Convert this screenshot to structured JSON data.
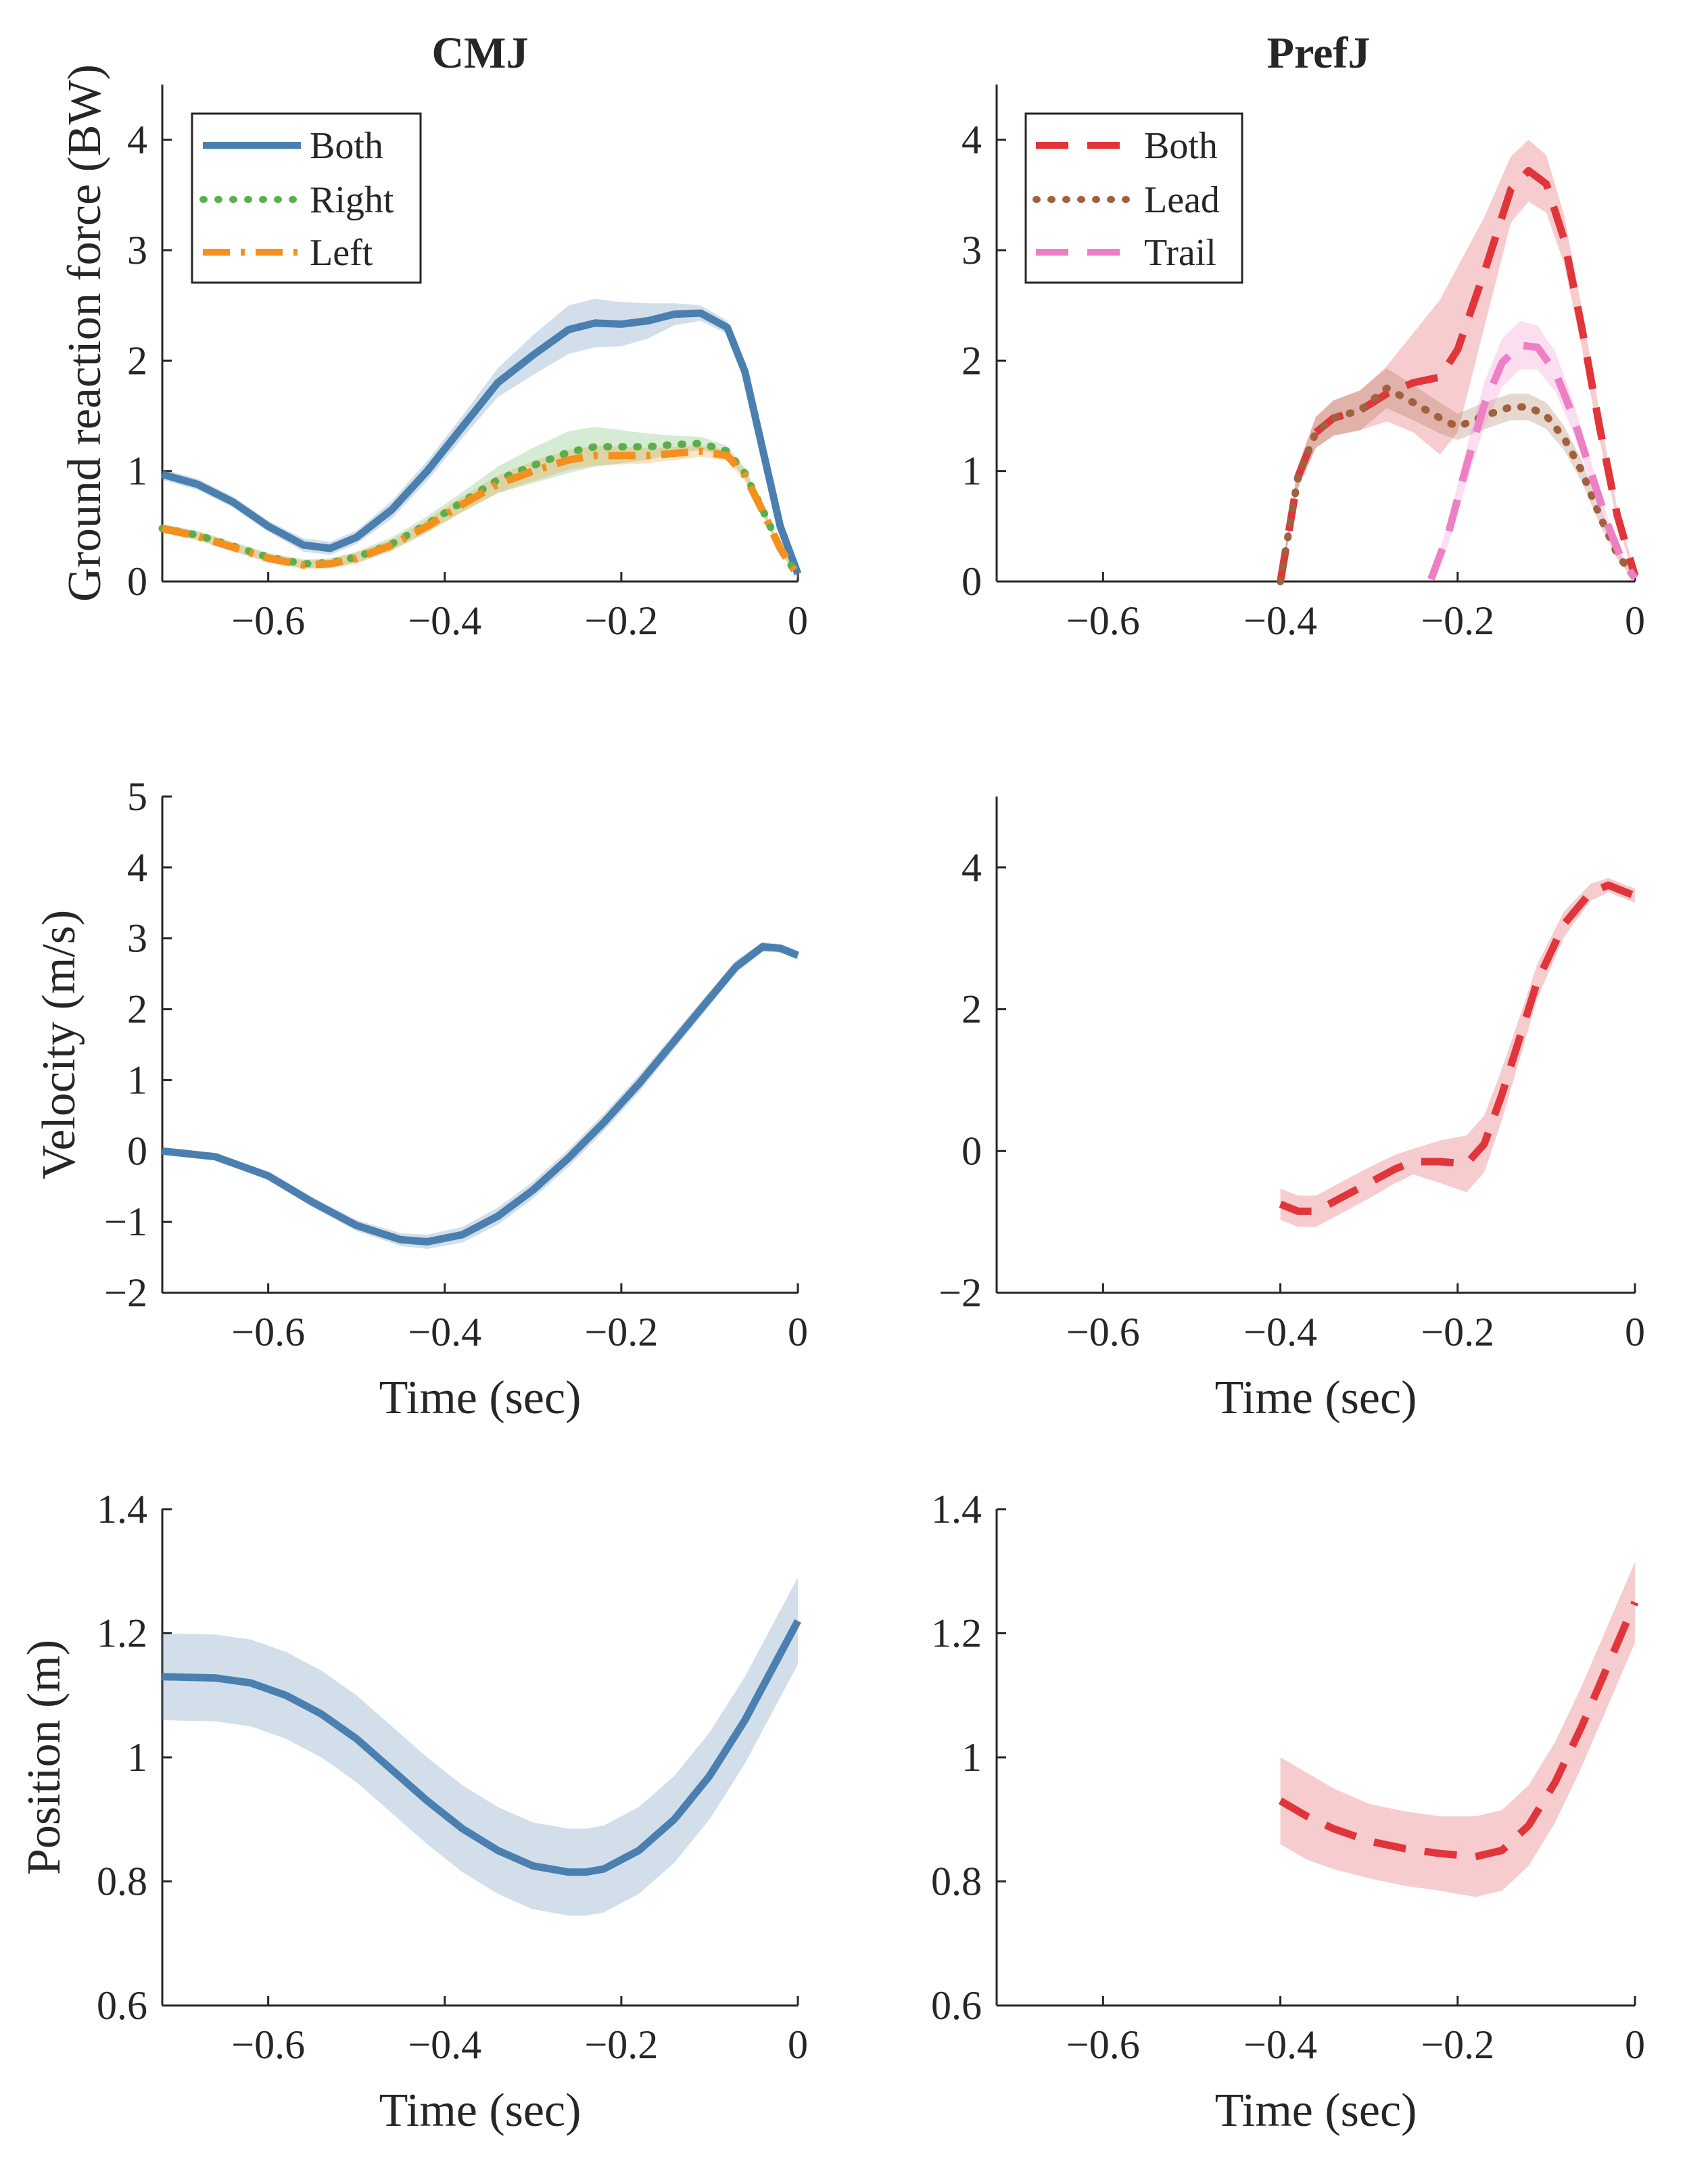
{
  "figure": {
    "columns": [
      "CMJ",
      "PrefJ"
    ]
  },
  "colors": {
    "cmj_both": "#4a7fb0",
    "cmj_right": "#5aae4e",
    "cmj_left": "#f3901e",
    "pref_both": "#e0353b",
    "pref_lead": "#a0623e",
    "pref_trail": "#ee7fc4"
  },
  "chart_data": [
    {
      "id": "cmj-grf",
      "type": "line",
      "title": "CMJ",
      "xlabel": "",
      "ylabel": "Ground reaction force (BW)",
      "xlim": [
        -0.72,
        0
      ],
      "ylim": [
        0,
        4.5
      ],
      "xticks": [
        -0.6,
        -0.4,
        -0.2,
        0
      ],
      "xtick_labels": [
        "−0.6",
        "−0.4",
        "−0.2",
        "0"
      ],
      "yticks": [
        0,
        1,
        2,
        3,
        4
      ],
      "ytick_labels": [
        "0",
        "1",
        "2",
        "3",
        "4"
      ],
      "legend": {
        "position": "top-left",
        "entries": [
          "Both",
          "Right",
          "Left"
        ]
      },
      "series": [
        {
          "name": "Both",
          "style": "solid",
          "color_key": "cmj_both",
          "x": [
            -0.72,
            -0.68,
            -0.64,
            -0.6,
            -0.56,
            -0.53,
            -0.5,
            -0.46,
            -0.42,
            -0.38,
            -0.34,
            -0.3,
            -0.26,
            -0.23,
            -0.2,
            -0.17,
            -0.14,
            -0.11,
            -0.08,
            -0.06,
            -0.04,
            -0.02,
            0.0
          ],
          "y": [
            0.97,
            0.88,
            0.72,
            0.5,
            0.33,
            0.3,
            0.4,
            0.65,
            1.0,
            1.4,
            1.8,
            2.05,
            2.28,
            2.34,
            2.33,
            2.36,
            2.42,
            2.43,
            2.3,
            1.9,
            1.2,
            0.5,
            0.07
          ],
          "band": [
            0.05,
            0.05,
            0.05,
            0.05,
            0.06,
            0.06,
            0.06,
            0.08,
            0.09,
            0.1,
            0.13,
            0.18,
            0.22,
            0.22,
            0.2,
            0.16,
            0.1,
            0.07,
            0.06,
            0.06,
            0.05,
            0.04,
            0.03
          ]
        },
        {
          "name": "Right",
          "style": "dotted",
          "color_key": "cmj_right",
          "x": [
            -0.72,
            -0.68,
            -0.64,
            -0.6,
            -0.56,
            -0.53,
            -0.5,
            -0.46,
            -0.42,
            -0.38,
            -0.34,
            -0.3,
            -0.26,
            -0.23,
            -0.2,
            -0.17,
            -0.14,
            -0.11,
            -0.08,
            -0.06,
            -0.04,
            -0.02,
            0.0
          ],
          "y": [
            0.48,
            0.42,
            0.32,
            0.22,
            0.16,
            0.17,
            0.22,
            0.34,
            0.52,
            0.72,
            0.92,
            1.05,
            1.17,
            1.22,
            1.22,
            1.22,
            1.24,
            1.25,
            1.18,
            0.98,
            0.65,
            0.3,
            0.05
          ],
          "band": [
            0.04,
            0.04,
            0.04,
            0.04,
            0.04,
            0.04,
            0.05,
            0.06,
            0.07,
            0.09,
            0.12,
            0.16,
            0.19,
            0.18,
            0.15,
            0.12,
            0.08,
            0.06,
            0.05,
            0.05,
            0.04,
            0.03,
            0.02
          ]
        },
        {
          "name": "Left",
          "style": "dashdot",
          "color_key": "cmj_left",
          "x": [
            -0.72,
            -0.68,
            -0.64,
            -0.6,
            -0.56,
            -0.53,
            -0.5,
            -0.46,
            -0.42,
            -0.38,
            -0.34,
            -0.3,
            -0.26,
            -0.23,
            -0.2,
            -0.17,
            -0.14,
            -0.11,
            -0.08,
            -0.06,
            -0.04,
            -0.02,
            0.0
          ],
          "y": [
            0.48,
            0.41,
            0.31,
            0.21,
            0.15,
            0.16,
            0.21,
            0.33,
            0.5,
            0.7,
            0.88,
            1.0,
            1.1,
            1.14,
            1.14,
            1.14,
            1.16,
            1.18,
            1.14,
            0.96,
            0.64,
            0.3,
            0.05
          ],
          "band": [
            0.04,
            0.04,
            0.04,
            0.04,
            0.04,
            0.04,
            0.05,
            0.05,
            0.06,
            0.07,
            0.08,
            0.09,
            0.09,
            0.09,
            0.08,
            0.07,
            0.06,
            0.05,
            0.05,
            0.05,
            0.04,
            0.03,
            0.02
          ]
        }
      ]
    },
    {
      "id": "pref-grf",
      "type": "line",
      "title": "PrefJ",
      "xlabel": "",
      "ylabel": "",
      "xlim": [
        -0.72,
        0
      ],
      "ylim": [
        0,
        4.5
      ],
      "xticks": [
        -0.6,
        -0.4,
        -0.2,
        0
      ],
      "xtick_labels": [
        "−0.6",
        "−0.4",
        "−0.2",
        "0"
      ],
      "yticks": [
        0,
        1,
        2,
        3,
        4
      ],
      "ytick_labels": [
        "0",
        "1",
        "2",
        "3",
        "4"
      ],
      "legend": {
        "position": "top-left",
        "entries": [
          "Both",
          "Lead",
          "Trail"
        ]
      },
      "series": [
        {
          "name": "Both",
          "style": "dashed",
          "color_key": "pref_both",
          "x": [
            -0.4,
            -0.38,
            -0.36,
            -0.34,
            -0.31,
            -0.28,
            -0.25,
            -0.22,
            -0.2,
            -0.17,
            -0.14,
            -0.12,
            -0.1,
            -0.08,
            -0.06,
            -0.04,
            -0.02,
            0.0
          ],
          "y": [
            0.0,
            0.95,
            1.35,
            1.48,
            1.55,
            1.7,
            1.8,
            1.85,
            2.1,
            2.8,
            3.55,
            3.72,
            3.6,
            3.1,
            2.3,
            1.4,
            0.6,
            0.05
          ],
          "band": [
            0.03,
            0.1,
            0.14,
            0.16,
            0.18,
            0.25,
            0.45,
            0.7,
            0.75,
            0.5,
            0.3,
            0.28,
            0.26,
            0.22,
            0.18,
            0.12,
            0.06,
            0.03
          ]
        },
        {
          "name": "Lead",
          "style": "dotted",
          "color_key": "pref_lead",
          "x": [
            -0.4,
            -0.38,
            -0.36,
            -0.34,
            -0.31,
            -0.28,
            -0.25,
            -0.22,
            -0.2,
            -0.17,
            -0.14,
            -0.12,
            -0.1,
            -0.08,
            -0.06,
            -0.04,
            -0.02,
            0.0
          ],
          "y": [
            0.0,
            0.95,
            1.35,
            1.48,
            1.55,
            1.75,
            1.62,
            1.48,
            1.4,
            1.5,
            1.58,
            1.58,
            1.5,
            1.3,
            1.0,
            0.6,
            0.25,
            0.03
          ],
          "band": [
            0.03,
            0.1,
            0.14,
            0.16,
            0.18,
            0.18,
            0.16,
            0.14,
            0.12,
            0.12,
            0.12,
            0.12,
            0.12,
            0.11,
            0.1,
            0.08,
            0.05,
            0.02
          ]
        },
        {
          "name": "Trail",
          "style": "dashed",
          "color_key": "pref_trail",
          "x": [
            -0.23,
            -0.21,
            -0.19,
            -0.17,
            -0.15,
            -0.13,
            -0.11,
            -0.09,
            -0.07,
            -0.05,
            -0.03,
            -0.015,
            0.0
          ],
          "y": [
            0.02,
            0.45,
            1.05,
            1.6,
            1.98,
            2.14,
            2.12,
            1.9,
            1.5,
            1.0,
            0.5,
            0.2,
            0.03
          ],
          "band": [
            0.02,
            0.1,
            0.16,
            0.2,
            0.22,
            0.22,
            0.2,
            0.18,
            0.14,
            0.1,
            0.06,
            0.04,
            0.02
          ]
        }
      ]
    },
    {
      "id": "cmj-vel",
      "type": "line",
      "title": "",
      "xlabel": "Time (sec)",
      "ylabel": "Velocity (m/s)",
      "xlim": [
        -0.72,
        0
      ],
      "ylim": [
        -2,
        5
      ],
      "xticks": [
        -0.6,
        -0.4,
        -0.2,
        0
      ],
      "xtick_labels": [
        "−0.6",
        "−0.4",
        "−0.2",
        "0"
      ],
      "yticks": [
        -2,
        -1,
        0,
        1,
        2,
        3,
        4,
        5
      ],
      "ytick_labels": [
        "−2",
        "−1",
        "0",
        "1",
        "2",
        "3",
        "4",
        "5"
      ],
      "series": [
        {
          "name": "Both",
          "style": "solid",
          "color_key": "cmj_both",
          "x": [
            -0.72,
            -0.66,
            -0.6,
            -0.55,
            -0.5,
            -0.45,
            -0.42,
            -0.38,
            -0.34,
            -0.3,
            -0.26,
            -0.22,
            -0.18,
            -0.14,
            -0.1,
            -0.07,
            -0.04,
            -0.02,
            0.0
          ],
          "y": [
            0.0,
            -0.08,
            -0.35,
            -0.72,
            -1.05,
            -1.25,
            -1.28,
            -1.18,
            -0.92,
            -0.55,
            -0.1,
            0.4,
            0.95,
            1.55,
            2.15,
            2.6,
            2.88,
            2.86,
            2.76
          ],
          "band": [
            0.03,
            0.04,
            0.06,
            0.07,
            0.08,
            0.09,
            0.1,
            0.11,
            0.12,
            0.12,
            0.12,
            0.12,
            0.12,
            0.11,
            0.1,
            0.09,
            0.07,
            0.06,
            0.06
          ]
        }
      ]
    },
    {
      "id": "pref-vel",
      "type": "line",
      "title": "",
      "xlabel": "Time (sec)",
      "ylabel": "",
      "xlim": [
        -0.72,
        0
      ],
      "ylim": [
        -2,
        5
      ],
      "xticks": [
        -0.6,
        -0.4,
        -0.2,
        0
      ],
      "xtick_labels": [
        "−0.6",
        "−0.4",
        "−0.2",
        "0"
      ],
      "yticks": [
        -2,
        0,
        2,
        4
      ],
      "ytick_labels": [
        "−2",
        "0",
        "2",
        "4"
      ],
      "series": [
        {
          "name": "Both",
          "style": "dashed",
          "color_key": "pref_both",
          "x": [
            -0.4,
            -0.38,
            -0.36,
            -0.33,
            -0.3,
            -0.27,
            -0.25,
            -0.22,
            -0.19,
            -0.17,
            -0.15,
            -0.13,
            -0.11,
            -0.08,
            -0.05,
            -0.03,
            0.0
          ],
          "y": [
            -0.75,
            -0.85,
            -0.85,
            -0.65,
            -0.45,
            -0.25,
            -0.15,
            -0.15,
            -0.18,
            0.1,
            0.8,
            1.6,
            2.4,
            3.2,
            3.65,
            3.75,
            3.6
          ],
          "band": [
            0.22,
            0.22,
            0.22,
            0.22,
            0.22,
            0.2,
            0.18,
            0.3,
            0.4,
            0.4,
            0.36,
            0.3,
            0.24,
            0.18,
            0.12,
            0.1,
            0.1
          ]
        }
      ]
    },
    {
      "id": "cmj-pos",
      "type": "line",
      "title": "",
      "xlabel": "Time (sec)",
      "ylabel": "Position (m)",
      "xlim": [
        -0.72,
        0
      ],
      "ylim": [
        0.6,
        1.4
      ],
      "xticks": [
        -0.6,
        -0.4,
        -0.2,
        0
      ],
      "xtick_labels": [
        "−0.6",
        "−0.4",
        "−0.2",
        "0"
      ],
      "yticks": [
        0.6,
        0.8,
        1.0,
        1.2,
        1.4
      ],
      "ytick_labels": [
        "0.6",
        "0.8",
        "1",
        "1.2",
        "1.4"
      ],
      "series": [
        {
          "name": "Both",
          "style": "solid",
          "color_key": "cmj_both",
          "x": [
            -0.72,
            -0.66,
            -0.62,
            -0.58,
            -0.54,
            -0.5,
            -0.46,
            -0.42,
            -0.38,
            -0.34,
            -0.3,
            -0.26,
            -0.24,
            -0.22,
            -0.18,
            -0.14,
            -0.1,
            -0.06,
            -0.03,
            0.0
          ],
          "y": [
            1.13,
            1.128,
            1.12,
            1.1,
            1.07,
            1.03,
            0.98,
            0.93,
            0.885,
            0.85,
            0.825,
            0.815,
            0.815,
            0.82,
            0.85,
            0.9,
            0.97,
            1.06,
            1.14,
            1.22
          ],
          "band": [
            0.07,
            0.07,
            0.07,
            0.07,
            0.07,
            0.07,
            0.07,
            0.07,
            0.07,
            0.07,
            0.07,
            0.07,
            0.07,
            0.07,
            0.07,
            0.07,
            0.07,
            0.07,
            0.07,
            0.07
          ]
        }
      ]
    },
    {
      "id": "pref-pos",
      "type": "line",
      "title": "",
      "xlabel": "Time (sec)",
      "ylabel": "",
      "xlim": [
        -0.72,
        0
      ],
      "ylim": [
        0.6,
        1.4
      ],
      "xticks": [
        -0.6,
        -0.4,
        -0.2,
        0
      ],
      "xtick_labels": [
        "−0.6",
        "−0.4",
        "−0.2",
        "0"
      ],
      "yticks": [
        0.6,
        0.8,
        1.0,
        1.2,
        1.4
      ],
      "ytick_labels": [
        "0.6",
        "0.8",
        "1",
        "1.2",
        "1.4"
      ],
      "series": [
        {
          "name": "Both",
          "style": "dashed",
          "color_key": "pref_both",
          "x": [
            -0.4,
            -0.37,
            -0.34,
            -0.3,
            -0.26,
            -0.22,
            -0.18,
            -0.15,
            -0.12,
            -0.09,
            -0.06,
            -0.03,
            0.0
          ],
          "y": [
            0.93,
            0.905,
            0.885,
            0.865,
            0.853,
            0.845,
            0.84,
            0.85,
            0.89,
            0.96,
            1.05,
            1.15,
            1.25
          ],
          "band": [
            0.07,
            0.07,
            0.065,
            0.06,
            0.06,
            0.06,
            0.065,
            0.065,
            0.065,
            0.065,
            0.065,
            0.065,
            0.065
          ]
        }
      ]
    }
  ]
}
